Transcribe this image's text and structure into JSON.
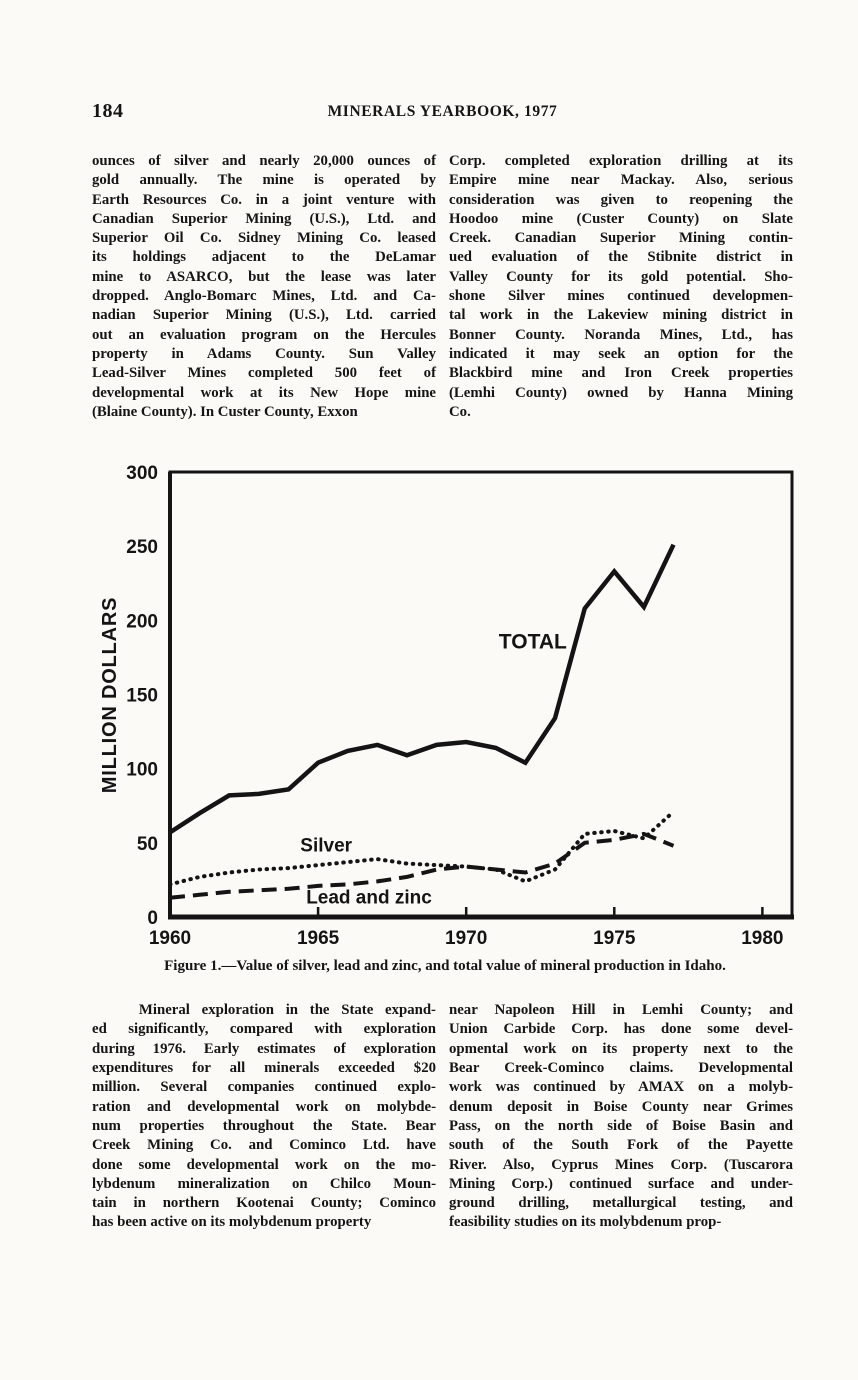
{
  "colors": {
    "paper": "#fbfaf6",
    "ink": "#141414"
  },
  "header": {
    "page_number": "184",
    "title": "MINERALS YEARBOOK, 1977"
  },
  "top_section": {
    "left_lines": [
      "ounces of silver and nearly 20,000 ounces of",
      "gold annually. The mine is operated by",
      "Earth Resources Co. in a joint venture with",
      "Canadian Superior Mining (U.S.), Ltd. and",
      "Superior Oil Co. Sidney Mining Co. leased",
      "its holdings adjacent to the DeLamar",
      "mine to ASARCO, but the lease was later",
      "dropped. Anglo-Bomarc Mines, Ltd. and Ca-",
      "nadian Superior Mining (U.S.), Ltd. carried",
      "out an evaluation program on the Hercules",
      "property in Adams County. Sun Valley",
      "Lead-Silver Mines completed 500 feet of",
      "developmental work at its New Hope mine",
      "(Blaine County). In Custer County, Exxon"
    ],
    "right_lines": [
      "Corp. completed exploration drilling at its",
      "Empire mine near Mackay. Also, serious",
      "consideration was given to reopening the",
      "Hoodoo mine (Custer County) on Slate",
      "Creek. Canadian Superior Mining contin-",
      "ued evaluation of the Stibnite district in",
      "Valley County for its gold potential. Sho-",
      "shone Silver mines continued developmen-",
      "tal work in the Lakeview mining district in",
      "Bonner County. Noranda Mines, Ltd., has",
      "indicated it may seek an option for the",
      "Blackbird mine and Iron Creek properties",
      "(Lemhi County) owned by Hanna Mining",
      "Co."
    ]
  },
  "figure": {
    "caption": "Figure 1.—Value of silver, lead and zinc, and total value of mineral production in Idaho."
  },
  "chart_data": {
    "type": "line",
    "title": "",
    "xlabel": "",
    "ylabel": "MILLION DOLLARS",
    "xlim": [
      1960,
      1981
    ],
    "ylim": [
      0,
      300
    ],
    "xticks": [
      1960,
      1965,
      1970,
      1975,
      1980
    ],
    "yticks": [
      0,
      50,
      100,
      150,
      200,
      250,
      300
    ],
    "grid": false,
    "legend": "inline-labels",
    "x": [
      1960,
      1961,
      1962,
      1963,
      1964,
      1965,
      1966,
      1967,
      1968,
      1969,
      1970,
      1971,
      1972,
      1973,
      1974,
      1975,
      1976,
      1977
    ],
    "series": [
      {
        "name": "TOTAL",
        "style": "solid",
        "values": [
          57,
          70,
          82,
          83,
          86,
          104,
          112,
          116,
          109,
          116,
          118,
          114,
          104,
          134,
          208,
          233,
          209,
          251
        ]
      },
      {
        "name": "Silver",
        "style": "dotted",
        "values": [
          22,
          27,
          30,
          32,
          33,
          35,
          37,
          39,
          36,
          35,
          34,
          32,
          24,
          32,
          56,
          58,
          53,
          71
        ]
      },
      {
        "name": "Lead and zinc",
        "style": "dashed",
        "values": [
          13,
          15,
          17,
          18,
          19,
          21,
          22,
          24,
          27,
          32,
          34,
          32,
          30,
          36,
          50,
          52,
          56,
          48
        ]
      }
    ],
    "labels": [
      {
        "text": "TOTAL",
        "x": 1971.1,
        "y": 181,
        "size": 21
      },
      {
        "text": "Silver",
        "x": 1964.4,
        "y": 44,
        "size": 19
      },
      {
        "text": "Lead and zinc",
        "x": 1964.6,
        "y": 9,
        "size": 19
      }
    ]
  },
  "bottom_section": {
    "left_lines": [
      "    Mineral exploration in the State expand-",
      "ed significantly, compared with exploration",
      "during 1976. Early estimates of exploration",
      "expenditures for all minerals exceeded $20",
      "million. Several companies continued explo-",
      "ration and developmental work on molybde-",
      "num properties throughout the State. Bear",
      "Creek Mining Co. and Cominco Ltd. have",
      "done some developmental work on the mo-",
      "lybdenum mineralization on Chilco Moun-",
      "tain in northern Kootenai County; Cominco",
      "has been active on its molybdenum property"
    ],
    "right_lines": [
      "near Napoleon Hill in Lemhi County; and",
      "Union Carbide Corp. has done some devel-",
      "opmental work on its property next to the",
      "Bear Creek-Cominco claims. Developmental",
      "work was continued by AMAX on a molyb-",
      "denum deposit in Boise County near Grimes",
      "Pass, on the north side of Boise Basin and",
      "south of the South Fork of the Payette",
      "River. Also, Cyprus Mines Corp. (Tuscarora",
      "Mining Corp.) continued surface and under-",
      "ground drilling, metallurgical testing, and",
      "feasibility studies on its molybdenum prop-"
    ]
  }
}
